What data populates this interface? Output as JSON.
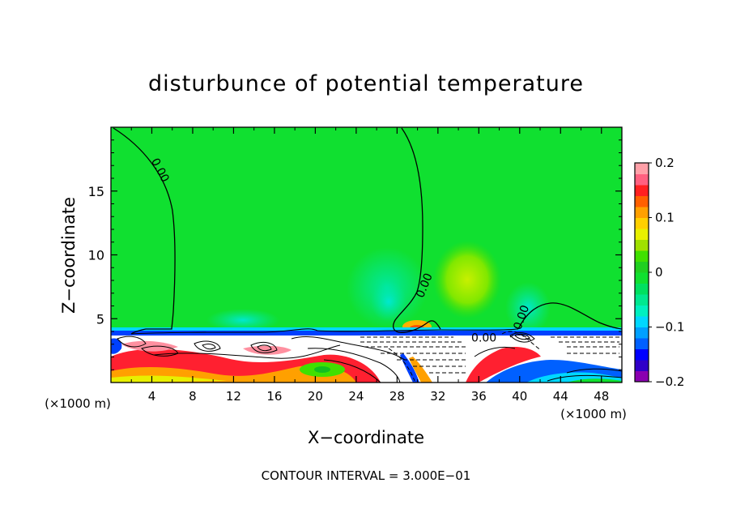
{
  "chart_data": {
    "type": "heatmap",
    "title": "disturbunce of potential temperature",
    "xlabel": "X−coordinate",
    "ylabel": "Z−coordinate",
    "x_unit_left": "(×1000 m)",
    "x_unit_right": "(×1000 m)",
    "xlim": [
      0,
      50
    ],
    "ylim": [
      0,
      20
    ],
    "x_ticks": [
      4,
      8,
      12,
      16,
      20,
      24,
      28,
      32,
      36,
      40,
      44,
      48
    ],
    "y_ticks": [
      5,
      10,
      15
    ],
    "colorbar": {
      "range": [
        -0.2,
        0.2
      ],
      "ticks": [
        {
          "value": 0.2,
          "label": "0.2"
        },
        {
          "value": 0.1,
          "label": "0.1"
        },
        {
          "value": 0,
          "label": "0"
        },
        {
          "value": -0.1,
          "label": "−0.1"
        },
        {
          "value": -0.2,
          "label": "−0.2"
        }
      ],
      "colors": [
        "#8a00b0",
        "#3000c8",
        "#0000ff",
        "#0060ff",
        "#00a0ff",
        "#00d8ff",
        "#00f0c0",
        "#00e890",
        "#00e060",
        "#10e030",
        "#20d020",
        "#40e000",
        "#a0e000",
        "#e8f000",
        "#ffd000",
        "#ffa000",
        "#ff6000",
        "#ff2020",
        "#ff6080",
        "#ffa0a8"
      ]
    },
    "contour_labels": [
      {
        "x": 4.5,
        "z": 16.5,
        "label": "0.00"
      },
      {
        "x": 31,
        "z": 7.5,
        "label": "0.00"
      },
      {
        "x": 40.5,
        "z": 5,
        "label": "0.00"
      },
      {
        "x": 36.5,
        "z": 3.2,
        "label": "0.00"
      }
    ],
    "footnote": "CONTOUR INTERVAL = 3.000E−01"
  }
}
